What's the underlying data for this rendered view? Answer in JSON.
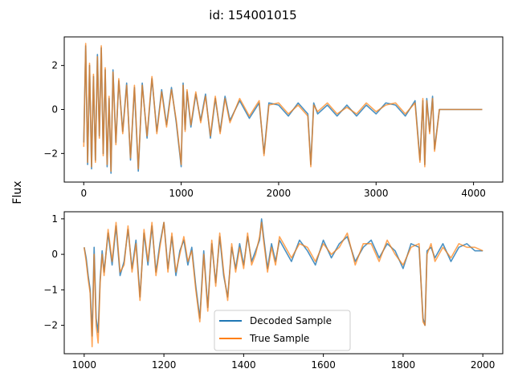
{
  "figure": {
    "suptitle": "id: 154001015",
    "shared_ylabel": "Flux"
  },
  "colors": {
    "decoded": "#1f77b4",
    "true": "#ff7f0e",
    "overlap_top": "#b0a898"
  },
  "chart_data": [
    {
      "type": "line",
      "title": "",
      "xlabel": "",
      "ylabel": "",
      "xlim": [
        -200,
        4300
      ],
      "ylim": [
        -3.3,
        3.3
      ],
      "xticks": [
        0,
        1000,
        2000,
        3000,
        4000
      ],
      "yticks": [
        -2,
        0,
        2
      ],
      "grid": false,
      "legend": "none",
      "series": [
        {
          "id": "decoded",
          "x": [
            0,
            20,
            40,
            60,
            80,
            100,
            120,
            140,
            160,
            180,
            200,
            220,
            240,
            260,
            280,
            300,
            330,
            360,
            400,
            440,
            480,
            520,
            560,
            600,
            650,
            700,
            750,
            800,
            850,
            900,
            950,
            1000,
            1020,
            1040,
            1060,
            1100,
            1150,
            1200,
            1250,
            1300,
            1350,
            1400,
            1450,
            1500,
            1600,
            1700,
            1800,
            1850,
            1900,
            2000,
            2100,
            2200,
            2300,
            2330,
            2360,
            2400,
            2500,
            2600,
            2700,
            2800,
            2900,
            3000,
            3100,
            3200,
            3300,
            3400,
            3450,
            3480,
            3500,
            3520,
            3550,
            3580,
            3600,
            3650,
            4090
          ],
          "y": [
            -1.5,
            2.9,
            -2.5,
            2.0,
            -2.7,
            1.5,
            -2.3,
            2.5,
            -1.2,
            2.8,
            -2.0,
            1.8,
            -2.6,
            0.5,
            -2.9,
            1.8,
            -1.5,
            1.3,
            -1.0,
            1.2,
            -2.3,
            1.0,
            -2.8,
            1.2,
            -1.3,
            1.4,
            -1.0,
            0.9,
            -0.7,
            1.0,
            -0.6,
            -2.6,
            1.2,
            -0.9,
            0.8,
            -0.8,
            0.7,
            -0.5,
            0.7,
            -1.3,
            0.5,
            -1.0,
            0.6,
            -0.5,
            0.4,
            -0.4,
            0.3,
            -2.0,
            0.3,
            0.2,
            -0.3,
            0.3,
            -0.2,
            -2.5,
            0.3,
            -0.2,
            0.2,
            -0.3,
            0.2,
            -0.3,
            0.2,
            -0.2,
            0.3,
            0.2,
            -0.3,
            0.4,
            -2.3,
            0.4,
            -2.5,
            0.5,
            -1.0,
            0.6,
            -1.8,
            0.0,
            0.0
          ]
        },
        {
          "id": "true",
          "x": [
            0,
            20,
            40,
            60,
            80,
            100,
            120,
            140,
            160,
            180,
            200,
            220,
            240,
            260,
            280,
            300,
            330,
            360,
            400,
            440,
            480,
            520,
            560,
            600,
            650,
            700,
            750,
            800,
            850,
            900,
            950,
            1000,
            1020,
            1040,
            1060,
            1100,
            1150,
            1200,
            1250,
            1300,
            1350,
            1400,
            1450,
            1500,
            1600,
            1700,
            1800,
            1850,
            1900,
            2000,
            2100,
            2200,
            2300,
            2330,
            2360,
            2400,
            2500,
            2600,
            2700,
            2800,
            2900,
            3000,
            3100,
            3200,
            3300,
            3400,
            3450,
            3480,
            3500,
            3520,
            3550,
            3580,
            3600,
            3650,
            4090
          ],
          "y": [
            -1.7,
            3.0,
            -2.4,
            2.1,
            -2.6,
            1.6,
            -2.4,
            2.4,
            -1.3,
            2.9,
            -2.1,
            1.9,
            -2.5,
            0.6,
            -2.8,
            1.7,
            -1.6,
            1.4,
            -1.1,
            1.1,
            -2.2,
            1.1,
            -2.7,
            1.1,
            -1.2,
            1.5,
            -1.1,
            0.8,
            -0.8,
            0.9,
            -0.5,
            -2.5,
            1.1,
            -1.0,
            0.9,
            -0.7,
            0.8,
            -0.6,
            0.6,
            -1.2,
            0.6,
            -1.1,
            0.5,
            -0.6,
            0.5,
            -0.3,
            0.4,
            -2.1,
            0.2,
            0.3,
            -0.2,
            0.2,
            -0.3,
            -2.6,
            0.2,
            -0.1,
            0.3,
            -0.2,
            0.1,
            -0.2,
            0.3,
            -0.1,
            0.2,
            0.3,
            -0.2,
            0.3,
            -2.4,
            0.5,
            -2.6,
            0.4,
            -1.1,
            0.5,
            -1.9,
            0.0,
            0.0
          ]
        }
      ]
    },
    {
      "type": "line",
      "title": "",
      "xlabel": "",
      "ylabel": "",
      "xlim": [
        950,
        2050
      ],
      "ylim": [
        -2.8,
        1.2
      ],
      "xticks": [
        1000,
        1200,
        1400,
        1600,
        1800,
        2000
      ],
      "yticks": [
        -2,
        -1,
        0,
        1
      ],
      "grid": false,
      "legend": "lower-center",
      "series": [
        {
          "id": "decoded",
          "name": "Decoded Sample",
          "x": [
            1000,
            1005,
            1010,
            1015,
            1020,
            1025,
            1030,
            1035,
            1040,
            1045,
            1050,
            1060,
            1070,
            1080,
            1090,
            1100,
            1110,
            1120,
            1130,
            1140,
            1150,
            1160,
            1170,
            1180,
            1190,
            1200,
            1210,
            1220,
            1230,
            1240,
            1250,
            1260,
            1270,
            1280,
            1290,
            1300,
            1310,
            1320,
            1330,
            1340,
            1350,
            1360,
            1370,
            1380,
            1390,
            1400,
            1410,
            1420,
            1430,
            1440,
            1445,
            1450,
            1460,
            1470,
            1480,
            1490,
            1500,
            1520,
            1540,
            1560,
            1580,
            1600,
            1620,
            1640,
            1660,
            1680,
            1700,
            1720,
            1740,
            1760,
            1780,
            1800,
            1820,
            1840,
            1850,
            1855,
            1860,
            1870,
            1880,
            1900,
            1920,
            1940,
            1960,
            1980,
            2000
          ],
          "y": [
            0.2,
            -0.1,
            -0.6,
            -1.0,
            -2.3,
            0.2,
            -1.8,
            -2.2,
            -0.7,
            0.1,
            -0.5,
            0.6,
            -0.3,
            0.8,
            -0.6,
            -0.2,
            0.7,
            -0.4,
            0.4,
            -1.2,
            0.6,
            -0.3,
            0.8,
            -0.5,
            0.3,
            0.9,
            -0.4,
            0.5,
            -0.6,
            0.1,
            0.4,
            -0.3,
            0.2,
            -0.9,
            -1.8,
            0.1,
            -1.5,
            0.3,
            -0.8,
            0.5,
            -0.6,
            -1.2,
            0.2,
            -0.4,
            0.3,
            -0.3,
            0.5,
            -0.2,
            0.1,
            0.4,
            1.0,
            0.5,
            -0.4,
            0.3,
            -0.2,
            0.4,
            0.2,
            -0.2,
            0.4,
            0.1,
            -0.3,
            0.4,
            -0.1,
            0.3,
            0.5,
            -0.2,
            0.2,
            0.4,
            -0.1,
            0.3,
            0.1,
            -0.4,
            0.3,
            0.2,
            -1.8,
            -2.0,
            0.1,
            0.2,
            -0.1,
            0.3,
            -0.2,
            0.2,
            0.3,
            0.1,
            0.1
          ]
        },
        {
          "id": "true",
          "name": "True Sample",
          "x": [
            1000,
            1005,
            1010,
            1015,
            1020,
            1025,
            1030,
            1035,
            1040,
            1045,
            1050,
            1060,
            1070,
            1080,
            1090,
            1100,
            1110,
            1120,
            1130,
            1140,
            1150,
            1160,
            1170,
            1180,
            1190,
            1200,
            1210,
            1220,
            1230,
            1240,
            1250,
            1260,
            1270,
            1280,
            1290,
            1300,
            1310,
            1320,
            1330,
            1340,
            1350,
            1360,
            1370,
            1380,
            1390,
            1400,
            1410,
            1420,
            1430,
            1440,
            1445,
            1450,
            1460,
            1470,
            1480,
            1490,
            1500,
            1520,
            1540,
            1560,
            1580,
            1600,
            1620,
            1640,
            1660,
            1680,
            1700,
            1720,
            1740,
            1760,
            1780,
            1800,
            1820,
            1840,
            1850,
            1855,
            1860,
            1870,
            1880,
            1900,
            1920,
            1940,
            1960,
            1980,
            2000
          ],
          "y": [
            0.2,
            -0.2,
            -0.7,
            -1.1,
            -2.6,
            0.0,
            -2.0,
            -2.5,
            -0.8,
            0.0,
            -0.6,
            0.7,
            -0.2,
            0.9,
            -0.5,
            -0.3,
            0.8,
            -0.5,
            0.3,
            -1.3,
            0.7,
            -0.2,
            0.9,
            -0.6,
            0.2,
            0.9,
            -0.5,
            0.6,
            -0.5,
            0.0,
            0.5,
            -0.2,
            0.1,
            -1.0,
            -1.9,
            0.0,
            -1.6,
            0.4,
            -0.9,
            0.6,
            -0.5,
            -1.3,
            0.3,
            -0.5,
            0.2,
            -0.4,
            0.6,
            -0.3,
            0.0,
            0.5,
            0.9,
            0.4,
            -0.5,
            0.2,
            -0.3,
            0.5,
            0.3,
            -0.1,
            0.3,
            0.2,
            -0.2,
            0.3,
            0.0,
            0.2,
            0.6,
            -0.3,
            0.3,
            0.3,
            -0.2,
            0.4,
            0.0,
            -0.3,
            0.2,
            0.3,
            -1.9,
            -2.0,
            0.0,
            0.3,
            -0.2,
            0.2,
            -0.1,
            0.3,
            0.2,
            0.2,
            0.1
          ]
        }
      ]
    }
  ]
}
